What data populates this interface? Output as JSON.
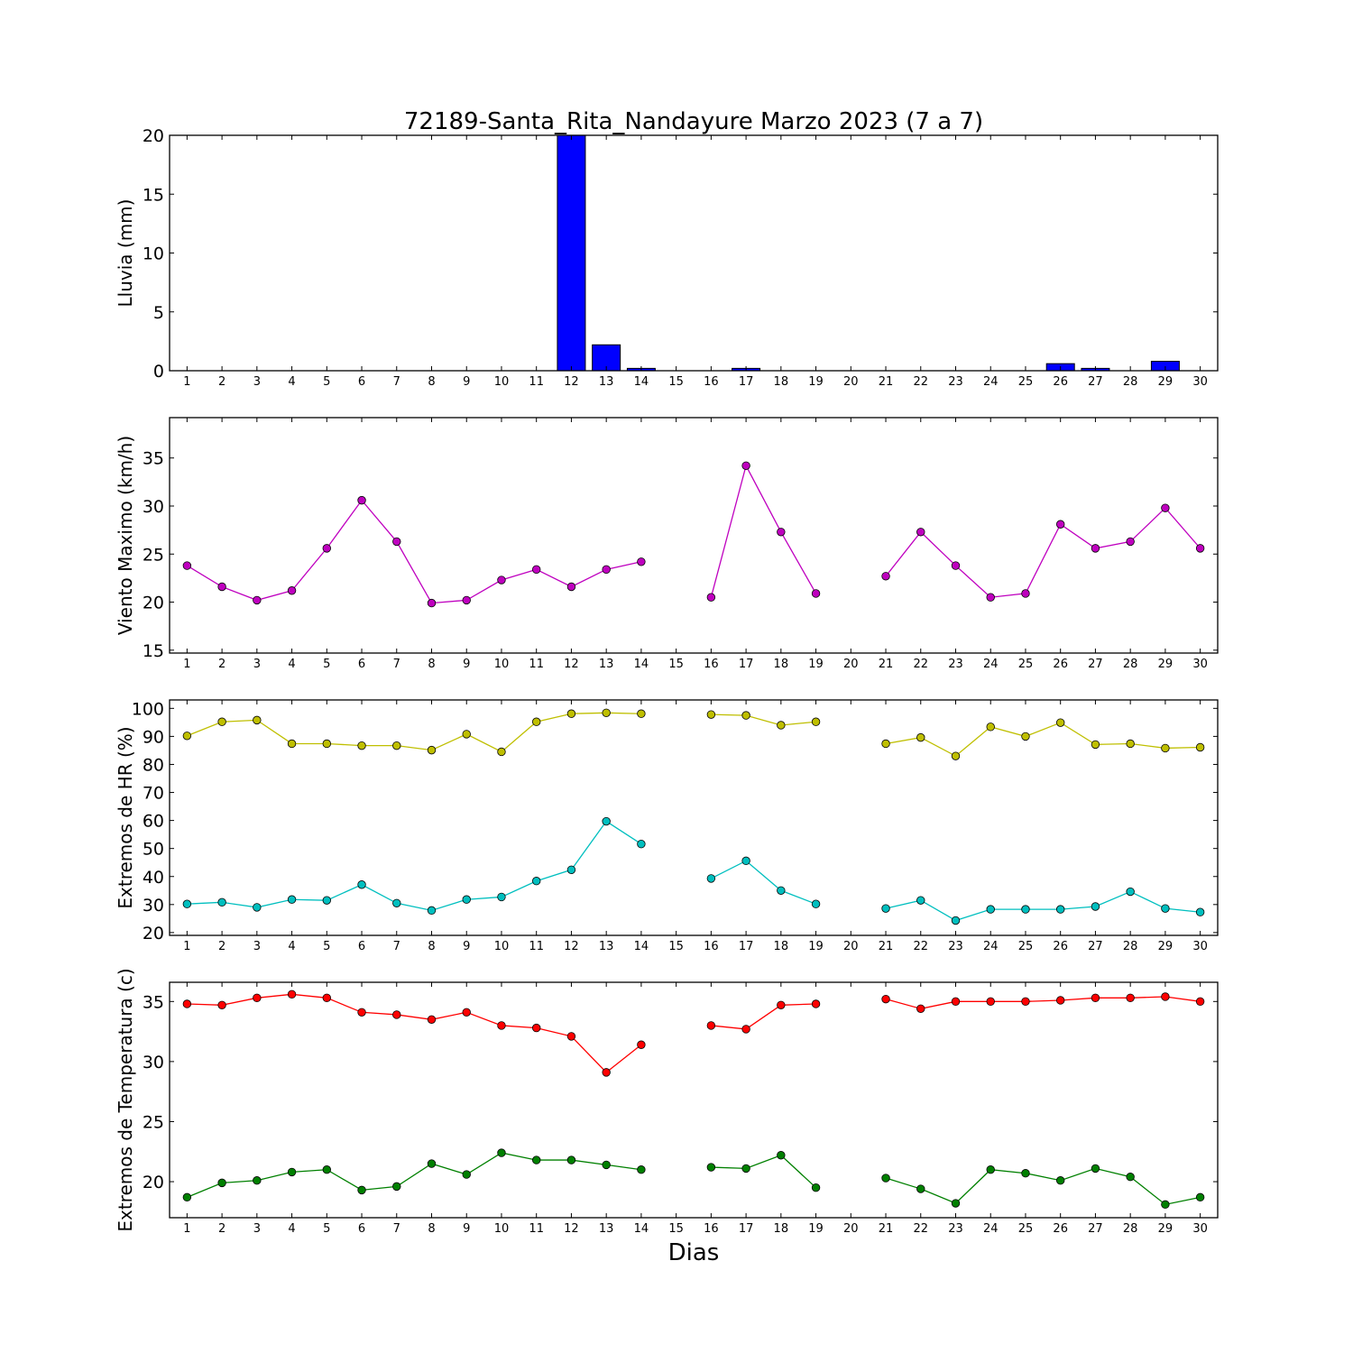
{
  "title": "72189-Santa_Rita_Nandayure Marzo 2023  (7 a 7)",
  "xlabel": "Dias",
  "colors": {
    "rain": "#0000ff",
    "wind": "#bf00bf",
    "hr_max": "#bfbf00",
    "hr_min": "#00bfbf",
    "t_max": "#ff0000",
    "t_min": "#008000"
  },
  "chart_data": [
    {
      "type": "bar",
      "ylabel": "Lluvia (mm)",
      "ylim": [
        0,
        20
      ],
      "yticks": [
        0,
        5,
        10,
        15,
        20
      ],
      "categories": [
        1,
        2,
        3,
        4,
        5,
        6,
        7,
        8,
        9,
        10,
        11,
        12,
        13,
        14,
        15,
        16,
        17,
        18,
        19,
        20,
        21,
        22,
        23,
        24,
        25,
        26,
        27,
        28,
        29,
        30
      ],
      "values": [
        0,
        0,
        0,
        0,
        0,
        0,
        0,
        0,
        0,
        0,
        0,
        20,
        2.2,
        0.2,
        null,
        0,
        0.2,
        0,
        0,
        null,
        0,
        0,
        0,
        0,
        0,
        0.6,
        0.2,
        0,
        0.8,
        null
      ]
    },
    {
      "type": "line",
      "ylabel": "Viento Maximo (km/h)",
      "ylim": [
        14.7,
        39.2
      ],
      "yticks": [
        15,
        20,
        25,
        30,
        35
      ],
      "categories": [
        1,
        2,
        3,
        4,
        5,
        6,
        7,
        8,
        9,
        10,
        11,
        12,
        13,
        14,
        15,
        16,
        17,
        18,
        19,
        20,
        21,
        22,
        23,
        24,
        25,
        26,
        27,
        28,
        29,
        30
      ],
      "series": [
        {
          "values": [
            23.8,
            21.6,
            20.2,
            21.2,
            25.6,
            30.6,
            26.3,
            19.9,
            20.2,
            22.3,
            23.4,
            21.6,
            23.4,
            24.2,
            null,
            20.5,
            34.2,
            27.3,
            20.9,
            null,
            22.7,
            27.3,
            23.8,
            20.5,
            20.9,
            28.1,
            25.6,
            26.3,
            29.8,
            25.6
          ]
        }
      ]
    },
    {
      "type": "line",
      "ylabel": "Extremos de HR (%)",
      "ylim": [
        19,
        103
      ],
      "yticks": [
        20,
        30,
        40,
        50,
        60,
        70,
        80,
        90,
        100
      ],
      "categories": [
        1,
        2,
        3,
        4,
        5,
        6,
        7,
        8,
        9,
        10,
        11,
        12,
        13,
        14,
        15,
        16,
        17,
        18,
        19,
        20,
        21,
        22,
        23,
        24,
        25,
        26,
        27,
        28,
        29,
        30
      ],
      "series": [
        {
          "values": [
            90.2,
            95.2,
            95.8,
            87.4,
            87.4,
            86.7,
            86.7,
            85.1,
            90.8,
            84.5,
            95.2,
            98.1,
            98.4,
            98.1,
            null,
            97.8,
            97.5,
            94.0,
            95.2,
            null,
            87.4,
            89.6,
            83.0,
            93.4,
            90.0,
            94.9,
            87.1,
            87.4,
            85.8,
            86.1
          ]
        },
        {
          "values": [
            30.2,
            30.8,
            29.0,
            31.8,
            31.5,
            37.1,
            30.5,
            27.9,
            31.8,
            32.7,
            38.4,
            42.4,
            59.7,
            51.6,
            null,
            39.3,
            45.6,
            35.0,
            30.2,
            null,
            28.6,
            31.5,
            24.3,
            28.3,
            28.3,
            28.3,
            29.3,
            34.6,
            28.6,
            27.3
          ]
        }
      ]
    },
    {
      "type": "line",
      "ylabel": "Extremos de Temperatura (c)",
      "ylim": [
        17,
        36.6
      ],
      "yticks": [
        20,
        25,
        30,
        35
      ],
      "categories": [
        1,
        2,
        3,
        4,
        5,
        6,
        7,
        8,
        9,
        10,
        11,
        12,
        13,
        14,
        15,
        16,
        17,
        18,
        19,
        20,
        21,
        22,
        23,
        24,
        25,
        26,
        27,
        28,
        29,
        30
      ],
      "series": [
        {
          "values": [
            34.8,
            34.7,
            35.3,
            35.6,
            35.3,
            34.1,
            33.9,
            33.5,
            34.1,
            33.0,
            32.8,
            32.1,
            29.1,
            31.4,
            null,
            33.0,
            32.7,
            34.7,
            34.8,
            null,
            35.2,
            34.4,
            35.0,
            35.0,
            35.0,
            35.1,
            35.3,
            35.3,
            35.4,
            35.0
          ]
        },
        {
          "values": [
            18.7,
            19.9,
            20.1,
            20.8,
            21.0,
            19.3,
            19.6,
            21.5,
            20.6,
            22.4,
            21.8,
            21.8,
            21.4,
            21.0,
            null,
            21.2,
            21.1,
            22.2,
            19.5,
            null,
            20.3,
            19.4,
            18.2,
            21.0,
            20.7,
            20.1,
            21.1,
            20.4,
            18.1,
            18.7
          ]
        }
      ]
    }
  ]
}
